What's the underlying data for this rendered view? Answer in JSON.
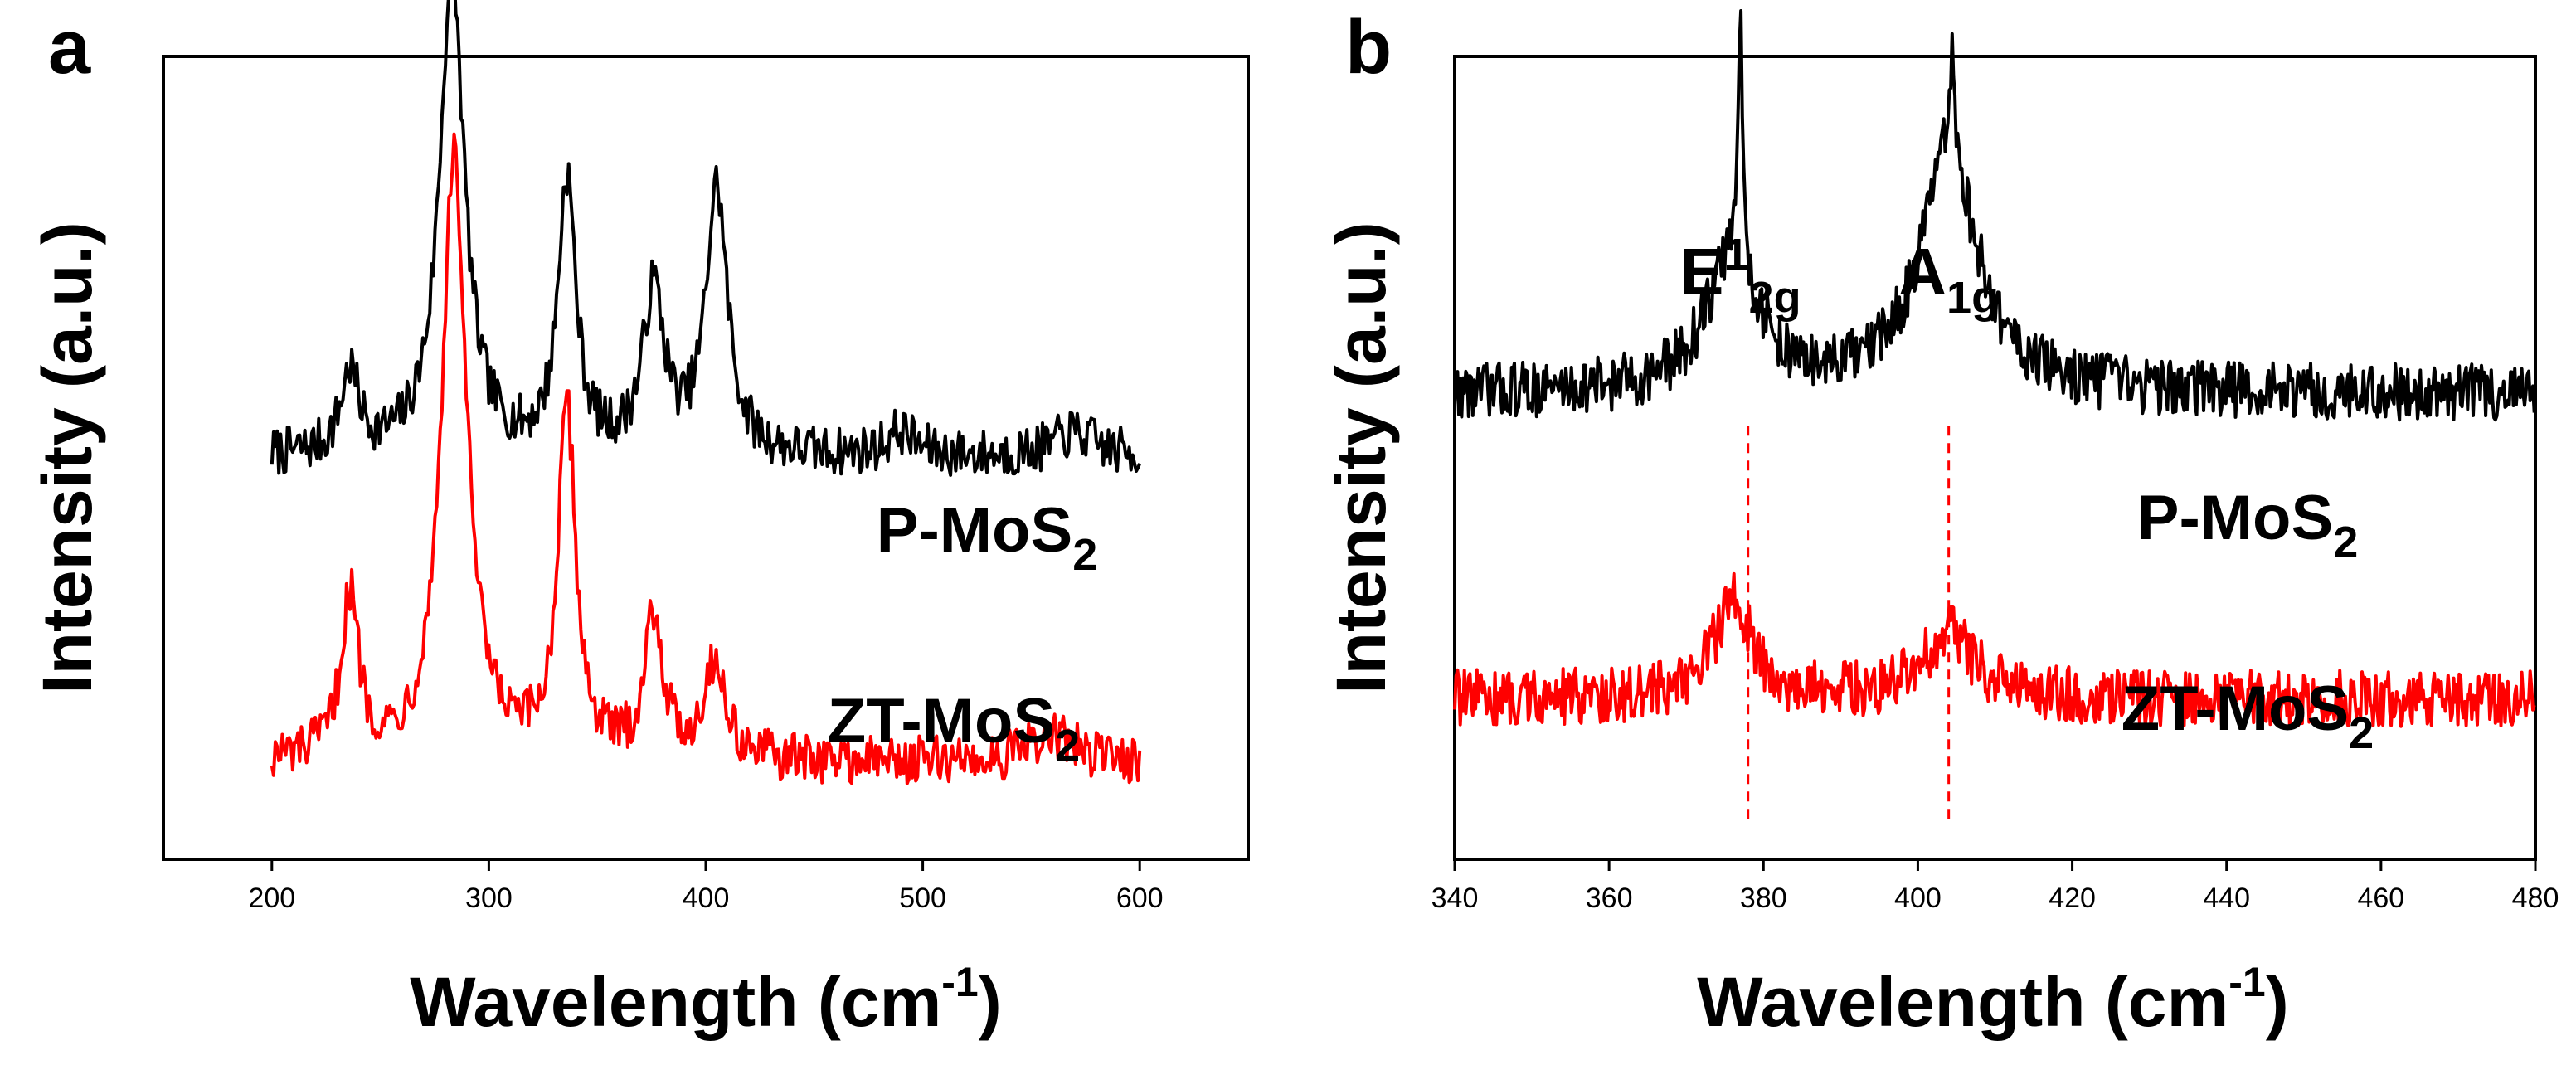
{
  "chart_data": [
    {
      "panel": "a",
      "type": "line",
      "xlabel": "Wavelength (cm-1)",
      "xlabel_parts": [
        "Wavelength (cm",
        "-1",
        ")"
      ],
      "ylabel": "Intensity (a.u.)",
      "xlim": [
        150,
        650
      ],
      "xticks": [
        200,
        300,
        400,
        500,
        600
      ],
      "yticks": false,
      "grid": false,
      "legend": "labels beside traces",
      "series": [
        {
          "name": "P-MoS2",
          "label_base": "P-MoS",
          "label_sub": "2",
          "color": "#000000",
          "baseline": 0.5,
          "noise": 0.03,
          "peaks": [
            {
              "x": 236,
              "height": 0.1,
              "width": 5
            },
            {
              "x": 283,
              "height": 0.6,
              "width": 7
            },
            {
              "x": 336,
              "height": 0.34,
              "width": 5
            },
            {
              "x": 376,
              "height": 0.2,
              "width": 6
            },
            {
              "x": 405,
              "height": 0.33,
              "width": 6
            },
            {
              "x": 490,
              "height": 0.03,
              "width": 8
            },
            {
              "x": 570,
              "height": 0.03,
              "width": 12
            }
          ],
          "x_range": [
            200,
            600
          ]
        },
        {
          "name": "ZT-MoS2",
          "label_base": "ZT-MoS",
          "label_sub": "2",
          "color": "#ff0000",
          "baseline": 0.12,
          "noise": 0.03,
          "peaks": [
            {
              "x": 236,
              "height": 0.2,
              "width": 5
            },
            {
              "x": 284,
              "height": 0.75,
              "width": 7
            },
            {
              "x": 336,
              "height": 0.43,
              "width": 5
            },
            {
              "x": 376,
              "height": 0.18,
              "width": 5
            },
            {
              "x": 404,
              "height": 0.12,
              "width": 6
            },
            {
              "x": 560,
              "height": 0.03,
              "width": 15
            }
          ],
          "x_range": [
            200,
            600
          ]
        }
      ]
    },
    {
      "panel": "b",
      "type": "line",
      "xlabel": "Wavelength (cm-1)",
      "xlabel_parts": [
        "Wavelength (cm",
        "-1",
        ")"
      ],
      "ylabel": "Intensity (a.u.)",
      "xlim": [
        340,
        480
      ],
      "xticks": [
        340,
        360,
        380,
        400,
        420,
        440,
        460,
        480
      ],
      "yticks": false,
      "grid": false,
      "legend": "labels beside traces",
      "annotations": [
        {
          "text": "E12g",
          "base": "E",
          "sup": "1",
          "sub": "2g",
          "x": 377
        },
        {
          "text": "A1g",
          "base": "A",
          "sub": "1g",
          "x": 404
        }
      ],
      "dashed_markers": [
        378,
        404
      ],
      "series": [
        {
          "name": "P-MoS2",
          "label_base": "P-MoS",
          "label_sub": "2",
          "color": "#000000",
          "baseline": 0.58,
          "noise": 0.035,
          "peaks": [
            {
              "x": 376,
              "height": 0.17,
              "width": 4
            },
            {
              "x": 377,
              "height": 0.3,
              "width": 0.35
            },
            {
              "x": 404,
              "height": 0.3,
              "width": 4.5
            },
            {
              "x": 404.5,
              "height": 0.12,
              "width": 0.35
            }
          ],
          "x_range": [
            340,
            480
          ]
        },
        {
          "name": "ZT-MoS2",
          "label_base": "ZT-MoS",
          "label_sub": "2",
          "color": "#ff0000",
          "baseline": 0.2,
          "noise": 0.035,
          "peaks": [
            {
              "x": 376,
              "height": 0.12,
              "width": 3
            },
            {
              "x": 404,
              "height": 0.08,
              "width": 4
            }
          ],
          "x_range": [
            340,
            480
          ]
        }
      ]
    }
  ]
}
